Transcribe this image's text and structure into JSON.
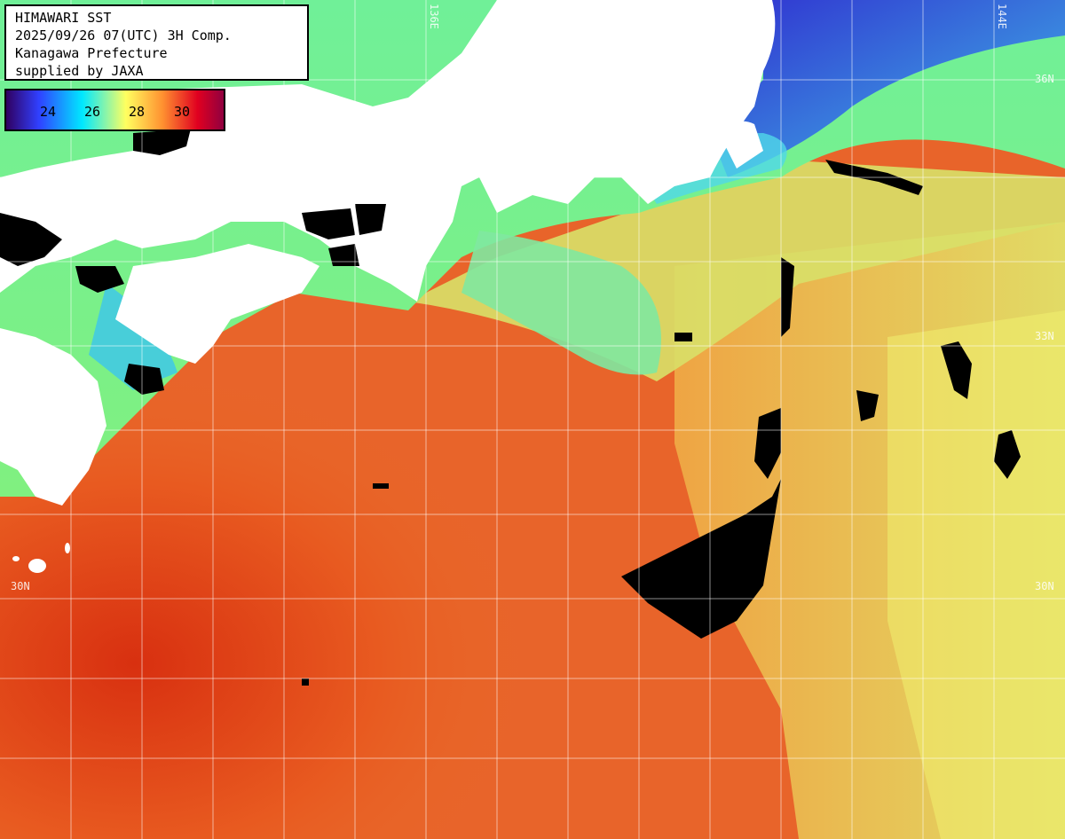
{
  "info": {
    "line1": "HIMAWARI SST",
    "line2": "2025/09/26 07(UTC) 3H Comp.",
    "line3": "Kanagawa Prefecture",
    "line4": "supplied by JAXA"
  },
  "legend": {
    "ticks": [
      "24",
      "26",
      "28",
      "30"
    ],
    "colors": [
      "#300060",
      "#3040ff",
      "#00e8ff",
      "#ffff60",
      "#ff8020",
      "#e00020",
      "#900040"
    ]
  },
  "grid_labels": {
    "lon1": "136E",
    "lon2": "144E",
    "lat1": "36N",
    "lat2": "33N",
    "lat3": "30N",
    "lat3_right": "30N"
  },
  "colors": {
    "land": "#ffffff",
    "cloud": "#000000",
    "sea_warm": "#e85a18",
    "sea_mid": "#f0a040",
    "sea_cool": "#60e890",
    "sea_cold": "#3040e0"
  }
}
